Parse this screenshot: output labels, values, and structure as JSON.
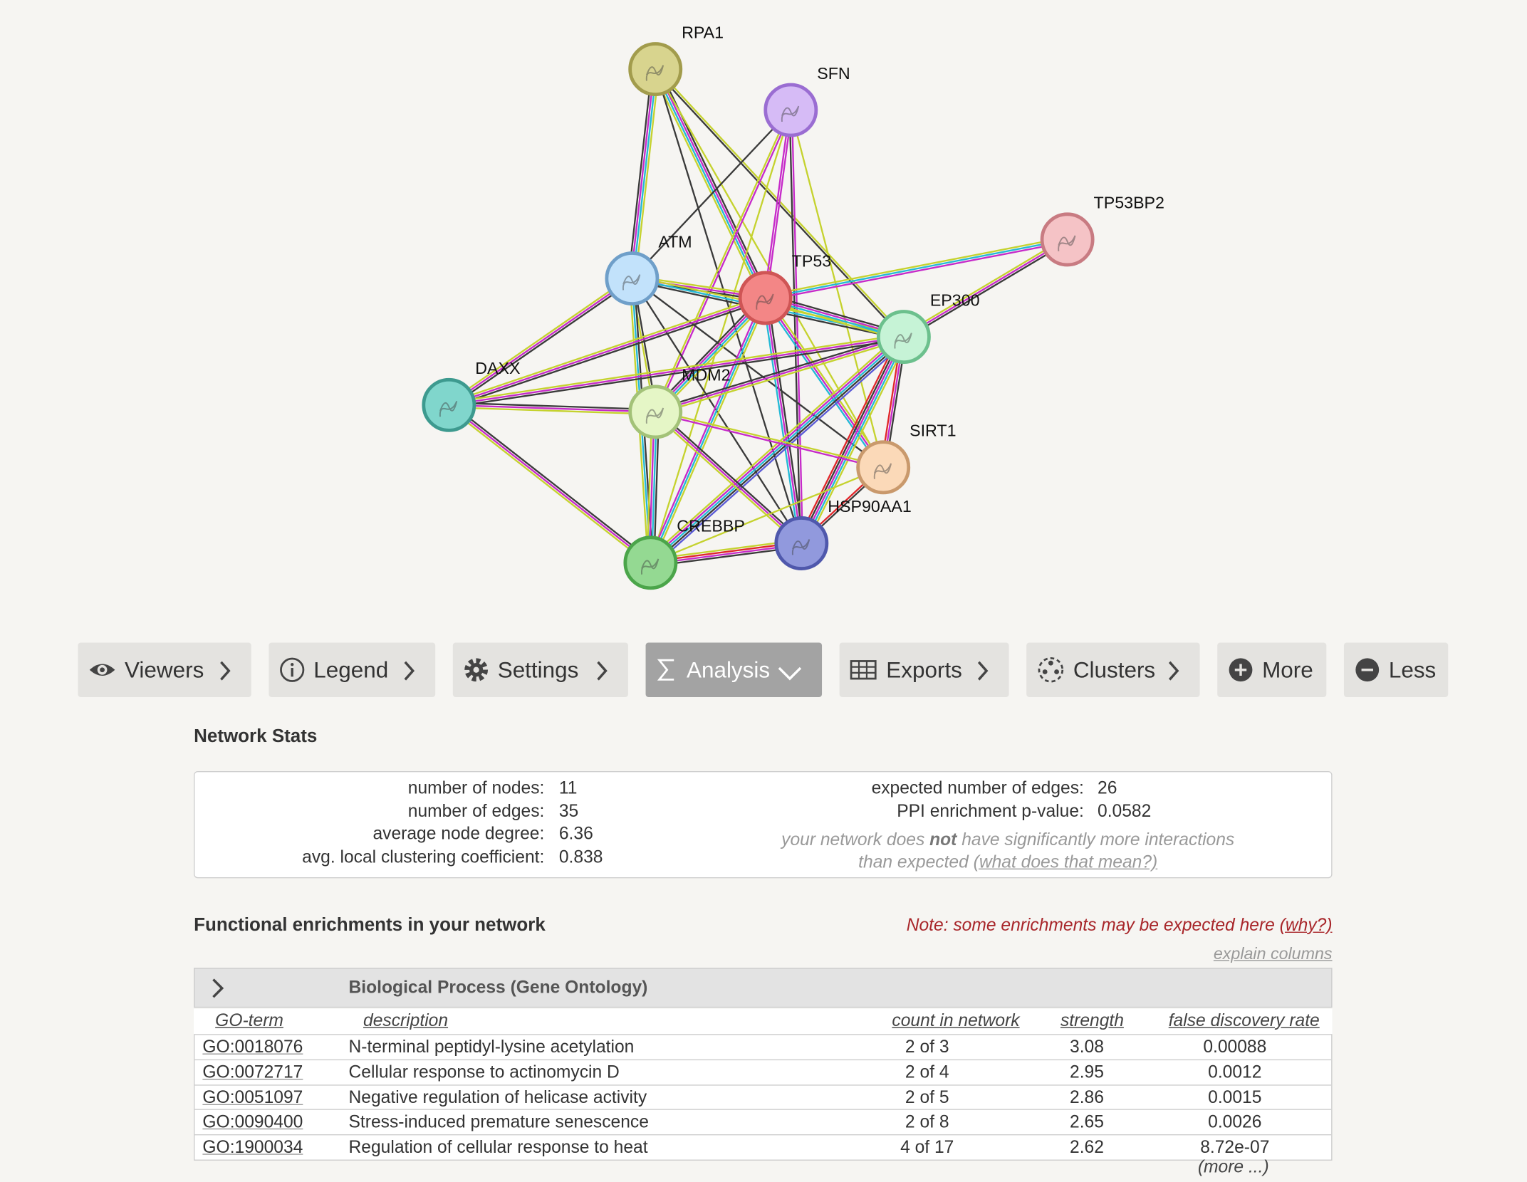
{
  "network": {
    "nodes": [
      {
        "label": "RPA1"
      },
      {
        "label": "SFN"
      },
      {
        "label": "TP53BP2"
      },
      {
        "label": "ATM"
      },
      {
        "label": "TP53"
      },
      {
        "label": "EP300"
      },
      {
        "label": "DAXX"
      },
      {
        "label": "MDM2"
      },
      {
        "label": "SIRT1"
      },
      {
        "label": "HSP90AA1"
      },
      {
        "label": "CREBBP"
      }
    ]
  },
  "toolbar": {
    "buttons": [
      "Viewers",
      "Legend",
      "Settings",
      "Analysis",
      "Exports",
      "Clusters",
      "More",
      "Less"
    ]
  },
  "network_stats": {
    "title": "Network Stats",
    "left": [
      {
        "label": "number of nodes:",
        "value": "11"
      },
      {
        "label": "number of edges:",
        "value": "35"
      },
      {
        "label": "average node degree:",
        "value": "6.36"
      },
      {
        "label": "avg. local clustering coefficient:",
        "value": "0.838"
      }
    ],
    "right": [
      {
        "label": "expected number of edges:",
        "value": "26"
      },
      {
        "label": "PPI enrichment p-value:",
        "value": "0.0582"
      }
    ],
    "note": {
      "before": "your network does ",
      "emphasis": "not",
      "after": " have significantly more interactions than expected ",
      "link": "(what does that mean?)"
    }
  },
  "enrichments": {
    "title": "Functional enrichments in your network",
    "note": {
      "text": "Note: some enrichments may be expected here ",
      "link": "(why?)"
    },
    "explain": "explain columns",
    "category": "Biological Process (Gene Ontology)",
    "columns": [
      "GO-term",
      "description",
      "count in network",
      "strength",
      "false discovery rate"
    ],
    "rows": [
      [
        "GO:0018076",
        "N-terminal peptidyl-lysine acetylation",
        "2 of 3",
        "3.08",
        "0.00088"
      ],
      [
        "GO:0072717",
        "Cellular response to actinomycin D",
        "2 of 4",
        "2.95",
        "0.0012"
      ],
      [
        "GO:0051097",
        "Negative regulation of helicase activity",
        "2 of 5",
        "2.86",
        "0.0015"
      ],
      [
        "GO:0090400",
        "Stress-induced premature senescence",
        "2 of 8",
        "2.65",
        "0.0026"
      ],
      [
        "GO:1900034",
        "Regulation of cellular response to heat",
        "4 of 17",
        "2.62",
        "8.72e-07"
      ]
    ],
    "more": "(more ...)"
  }
}
